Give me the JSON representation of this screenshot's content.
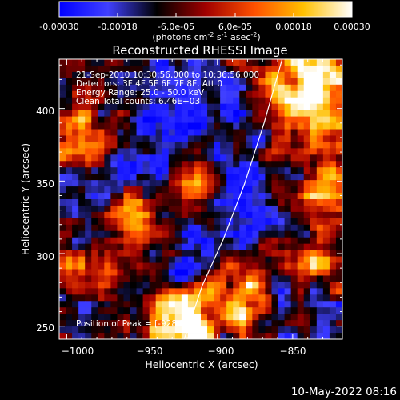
{
  "colorbar": {
    "ticks": [
      "-0.00030",
      "-0.00018",
      "-6.0e-05",
      "6.0e-05",
      "0.00018",
      "0.00030"
    ],
    "unit_prefix": "(photons cm",
    "unit_exp1": "-2",
    "unit_mid": " s",
    "unit_exp2": "-1",
    "unit_end": " asec",
    "unit_exp3": "-2",
    "unit_close": ")"
  },
  "chart_data": {
    "type": "heatmap",
    "title": "Reconstructed RHESSI Image",
    "xlabel": "Heliocentric X (arcsec)",
    "ylabel": "Heliocentric Y (arcsec)",
    "xlim": [
      -1005,
      -817
    ],
    "ylim": [
      241,
      434
    ],
    "xticks": [
      -1000,
      -950,
      -900,
      -850
    ],
    "xtick_labels": [
      "−1000",
      "−950",
      "−900",
      "−850"
    ],
    "yticks": [
      250,
      300,
      350,
      400
    ],
    "ytick_labels": [
      "250",
      "300",
      "350",
      "400"
    ],
    "limb_line": [
      [
        -922,
        241
      ],
      [
        -910,
        278
      ],
      [
        -896,
        310
      ],
      [
        -882,
        348
      ],
      [
        -869,
        390
      ],
      [
        -857,
        434
      ]
    ],
    "annotations": [
      "21-Sep-2010 10:30:56.000 to 10:36:56.000",
      "Detectors: 3F 4F 5F 6F 7F 8F, Att 0",
      "Energy Range: 25.0 - 50.0 keV",
      "Clean     Total counts: 6.46E+03"
    ],
    "peak_label": "Position of Peak = [-928,251]",
    "colormap": [
      "#0000ff",
      "#4040ff",
      "#000000",
      "#a00000",
      "#ff5000",
      "#ffc000",
      "#ffffff"
    ],
    "value_range": [
      -0.0003,
      0.0003
    ]
  },
  "footer": {
    "timestamp": "10-May-2022 08:16"
  }
}
